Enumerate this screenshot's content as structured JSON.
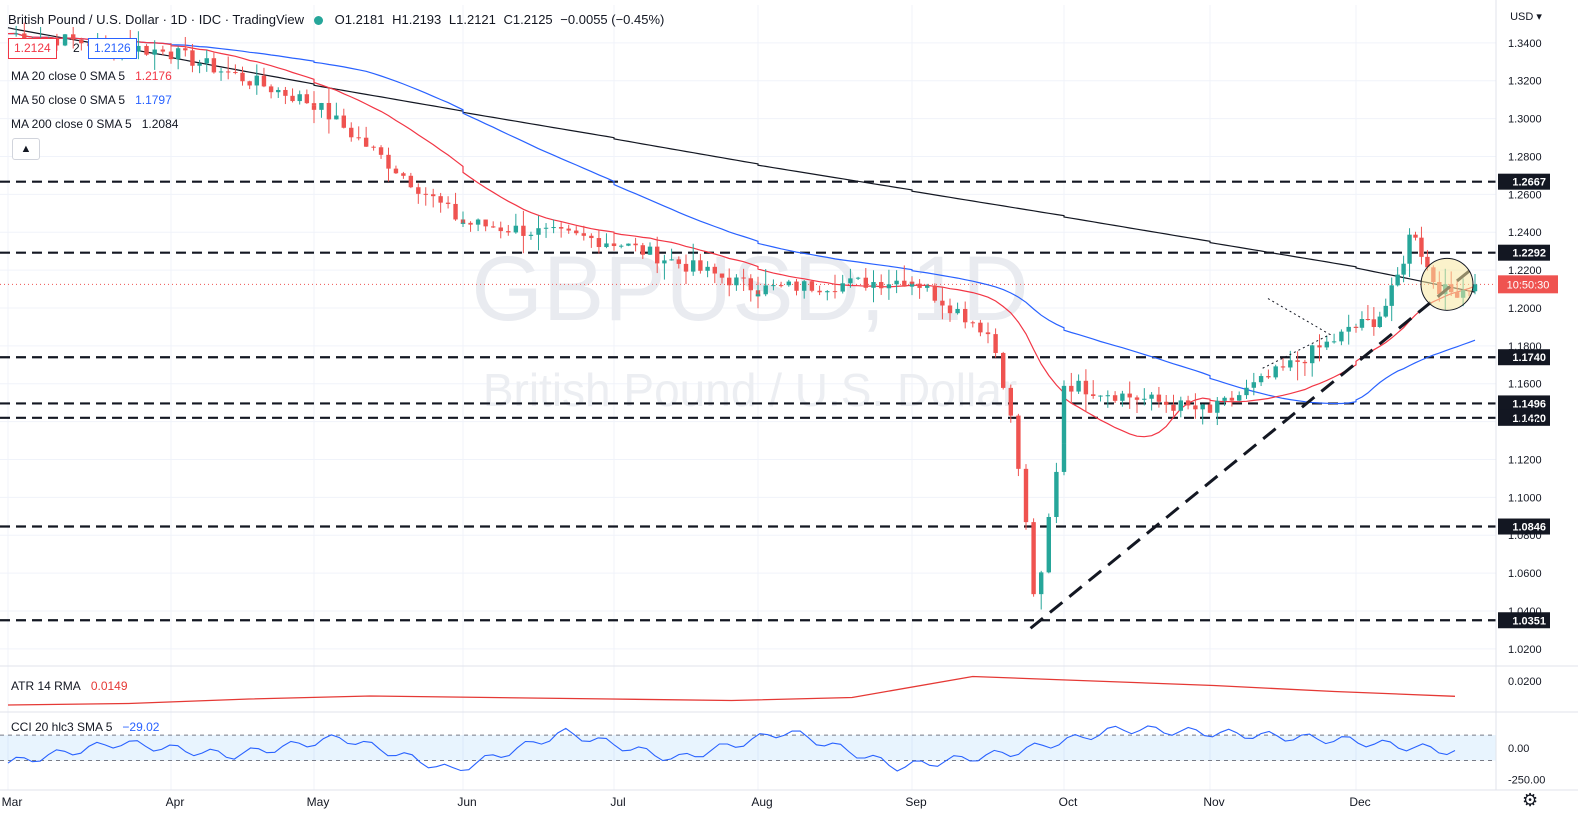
{
  "header": {
    "symbol_title": "British Pound / U.S. Dollar · 1D · IDC · TradingView",
    "open": "O1.2181",
    "high": "H1.2193",
    "low": "L1.2121",
    "close": "C1.2125",
    "change": "−0.0055 (−0.45%)"
  },
  "quote": {
    "bid": "1.2124",
    "spread": "2",
    "ask": "1.2126"
  },
  "moving_averages": [
    {
      "label": "MA 20 close 0 SMA 5",
      "value": "1.2176",
      "color": "#f23645"
    },
    {
      "label": "MA 50 close 0 SMA 5",
      "value": "1.1797",
      "color": "#2962ff"
    },
    {
      "label": "MA 200 close 0 SMA 5",
      "value": "1.2084",
      "color": "#131722"
    }
  ],
  "collapse_glyph": "▲",
  "watermark": {
    "symbol": "GBPUSD, 1D",
    "name": "British Pound / U.S. Dollar"
  },
  "indicators": {
    "atr": {
      "label": "ATR 14 RMA",
      "value": "0.0149",
      "color": "#e53935"
    },
    "cci": {
      "label": "CCI 20 hlc3 SMA 5",
      "value": "−29.02",
      "color": "#2962ff"
    }
  },
  "price_axis": {
    "currency": "USD"
  },
  "time_labels": [
    "Mar",
    "Apr",
    "May",
    "Jun",
    "Jul",
    "Aug",
    "Sep",
    "Oct",
    "Nov",
    "Dec"
  ],
  "settings_icon": "gear-icon",
  "chart_data": [
    {
      "type": "candlestick",
      "title": "British Pound / U.S. Dollar · 1D · IDC · TradingView",
      "ylim": [
        1.012,
        1.36
      ],
      "y_ticks": [
        1.02,
        1.04,
        1.06,
        1.08,
        1.1,
        1.12,
        1.14,
        1.16,
        1.18,
        1.2,
        1.22,
        1.24,
        1.26,
        1.28,
        1.3,
        1.32,
        1.34
      ],
      "x": [
        "Mar",
        "Apr",
        "May",
        "Jun",
        "Jul",
        "Aug",
        "Sep",
        "Oct",
        "Nov",
        "Dec"
      ],
      "horizontal_levels": [
        {
          "value": 1.2667,
          "label": "1.2667"
        },
        {
          "value": 1.2292,
          "label": "1.2292"
        },
        {
          "value": 1.174,
          "label": "1.1740"
        },
        {
          "value": 1.1496,
          "label": "1.1496"
        },
        {
          "value": 1.142,
          "label": "1.1420"
        },
        {
          "value": 1.0846,
          "label": "1.0846"
        },
        {
          "value": 1.0351,
          "label": "1.0351"
        }
      ],
      "last_price": {
        "value": 1.2125,
        "countdown": "10:50:30"
      },
      "monthly_path": [
        {
          "month": "Mar",
          "close": 1.335
        },
        {
          "month": "Apr",
          "close": 1.308
        },
        {
          "month": "May",
          "close": 1.245
        },
        {
          "month": "Jun",
          "close": 1.235
        },
        {
          "month": "Jul",
          "close": 1.21
        },
        {
          "month": "Aug",
          "close": 1.215
        },
        {
          "month": "Sep",
          "close": 1.16
        },
        {
          "month": "Oct",
          "close": 1.145
        },
        {
          "month": "Nov",
          "close": 1.19
        },
        {
          "month": "Dec",
          "close": 1.2125
        }
      ],
      "anchors": [
        {
          "month": "Sep",
          "day_frac": 0.82,
          "low": 1.0351
        },
        {
          "month": "Dec",
          "day_frac": 0.48,
          "high": 1.2446
        }
      ],
      "series": [
        {
          "name": "MA 20 close 0 SMA 5",
          "color": "#f23645",
          "last": 1.2176
        },
        {
          "name": "MA 50 close 0 SMA 5",
          "color": "#2962ff",
          "last": 1.1797
        },
        {
          "name": "MA 200 close 0 SMA 5",
          "color": "#131722",
          "last": 1.2084
        }
      ]
    },
    {
      "type": "line",
      "title": "ATR 14 RMA",
      "y_ticks": [
        0.02
      ],
      "values": [
        0.012,
        0.0125,
        0.014,
        0.015,
        0.0145,
        0.014,
        0.0135,
        0.0145,
        0.0215,
        0.02,
        0.0185,
        0.0165,
        0.0149
      ]
    },
    {
      "type": "line",
      "title": "CCI 20 hlc3 SMA 5",
      "y_ticks": [
        0.0,
        -250.0
      ],
      "bands": [
        100,
        -100
      ],
      "values": [
        -120,
        40,
        -60,
        80,
        -180,
        120,
        -90,
        130,
        -150,
        -40,
        150,
        110,
        60,
        -29.02
      ]
    }
  ]
}
